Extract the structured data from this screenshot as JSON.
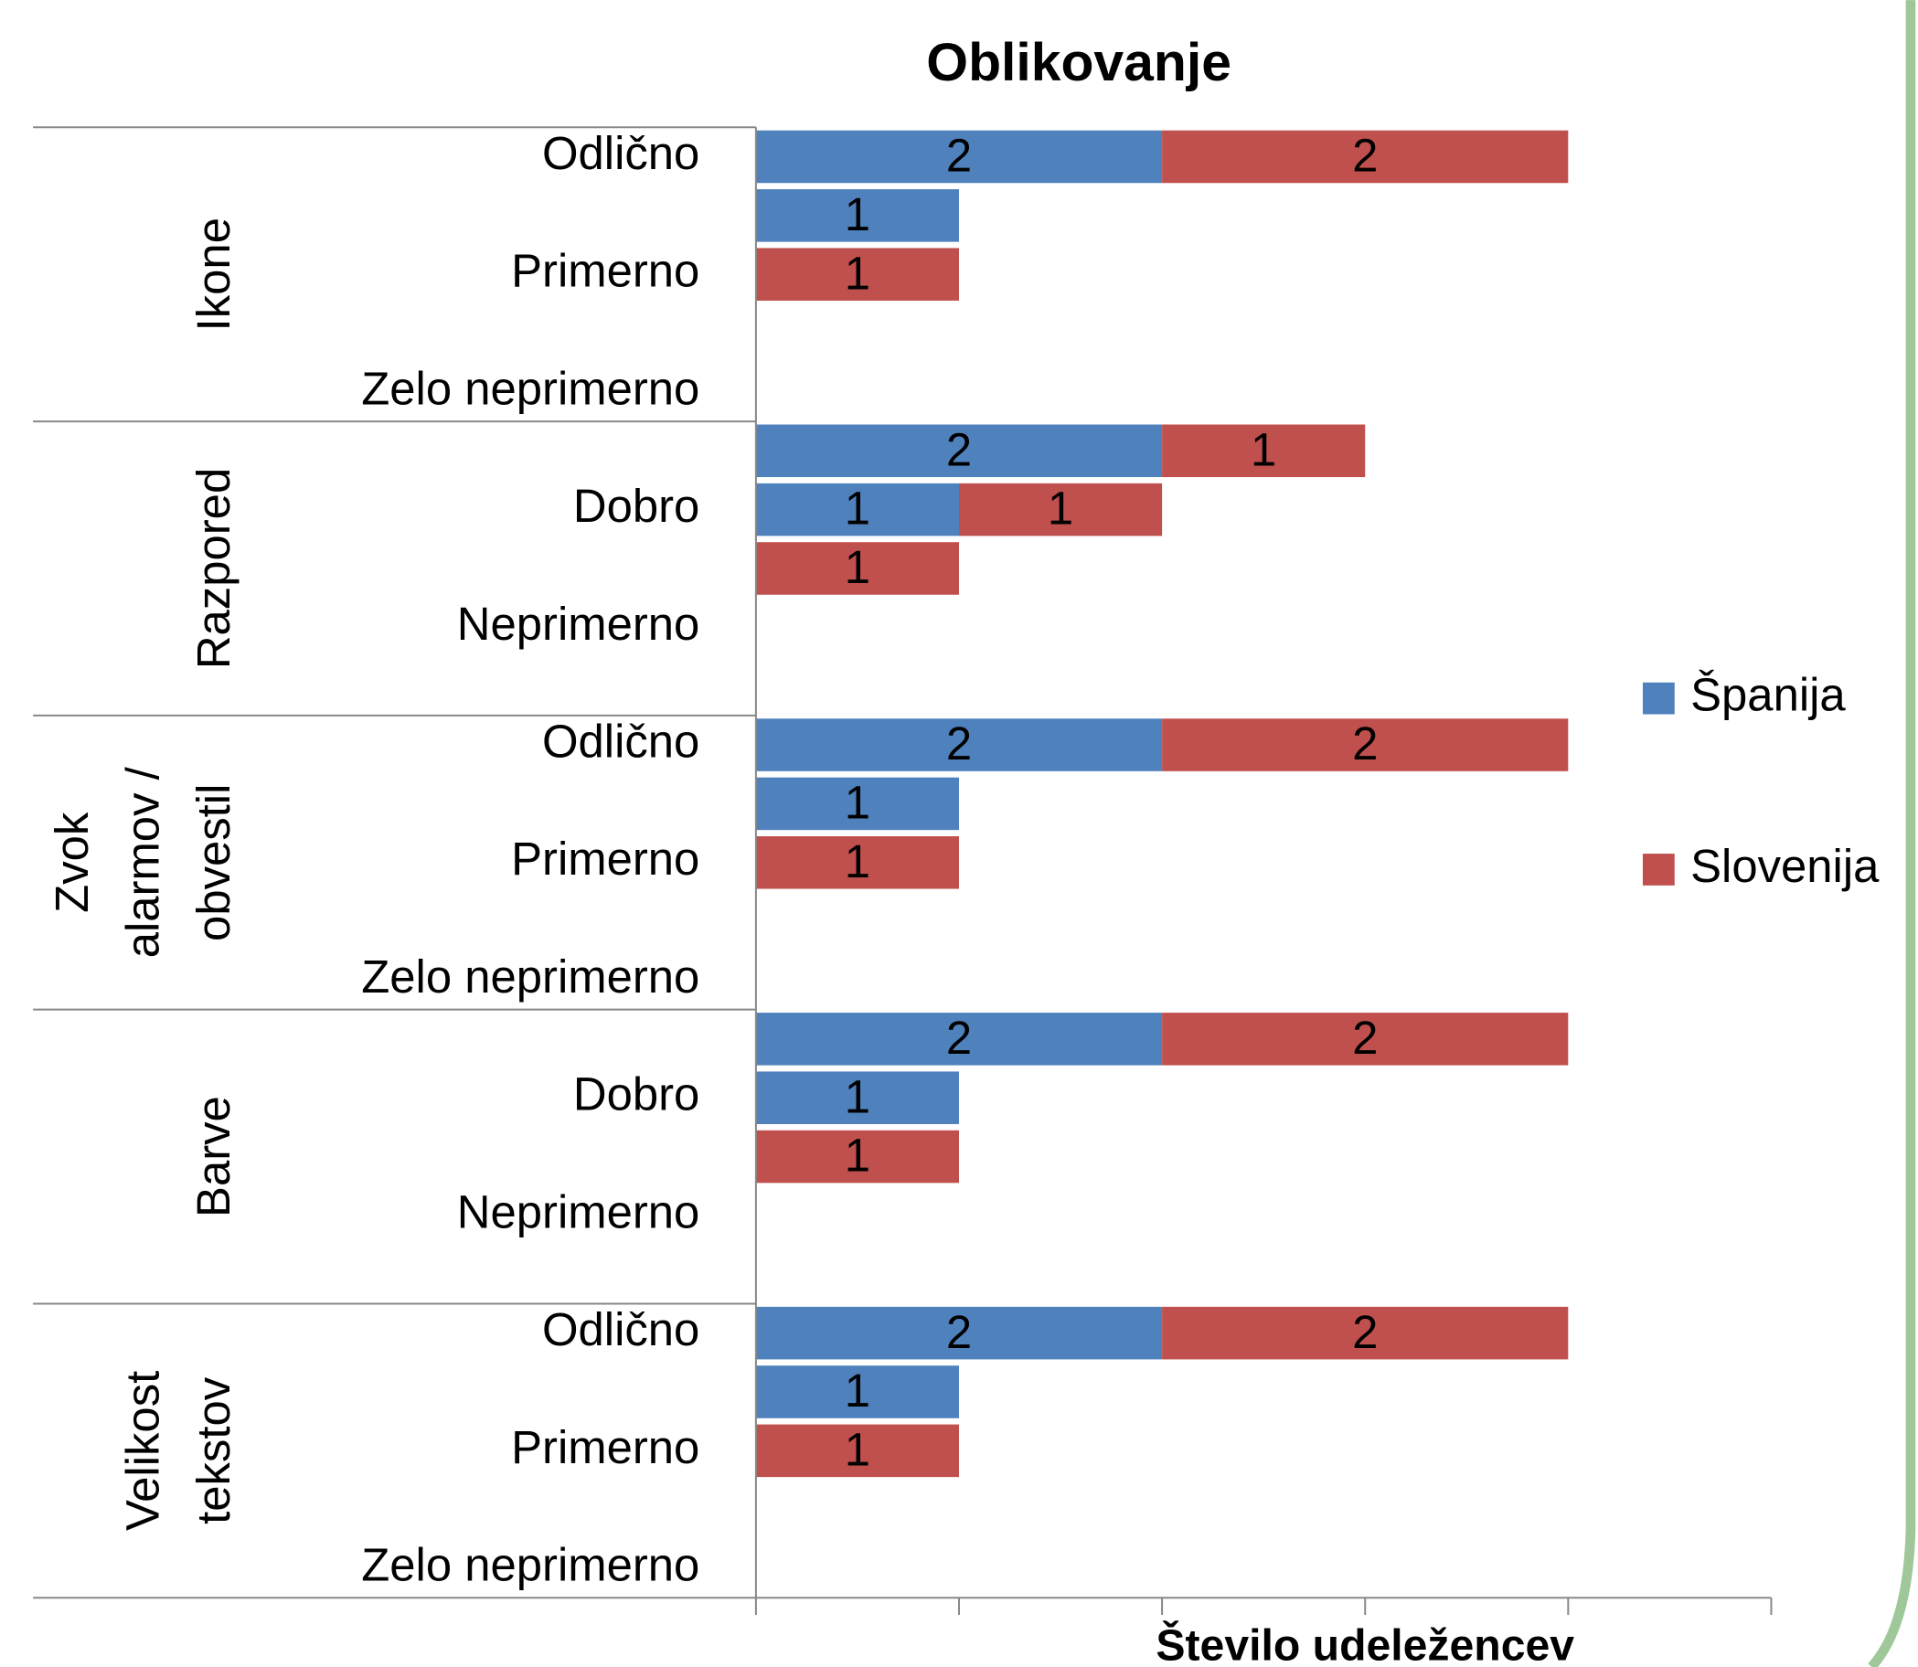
{
  "chart_data": {
    "type": "bar",
    "orientation": "horizontal",
    "stacked": true,
    "title": "Oblikovanje",
    "x_label": "Število udeležencev",
    "groups": [
      {
        "name": "Ikone",
        "categories": [
          "Odlično",
          null,
          "Primerno",
          null,
          "Zelo neprimerno"
        ]
      },
      {
        "name": "Razpored",
        "categories": [
          null,
          "Dobro",
          null,
          "Neprimerno",
          null
        ]
      },
      {
        "name": "Zvok alarmov / obvestil",
        "categories": [
          "Odlično",
          null,
          "Primerno",
          null,
          "Zelo neprimerno"
        ]
      },
      {
        "name": "Barve",
        "categories": [
          null,
          "Dobro",
          null,
          "Neprimerno",
          null
        ]
      },
      {
        "name": "Velikost tekstov",
        "categories": [
          "Odlično",
          null,
          "Primerno",
          null,
          "Zelo neprimerno"
        ]
      }
    ],
    "series": [
      {
        "name": "Španija",
        "color": "#4f81bd",
        "values": [
          2,
          1,
          null,
          null,
          null,
          2,
          1,
          null,
          null,
          null,
          2,
          1,
          null,
          null,
          null,
          2,
          1,
          null,
          null,
          null,
          2,
          1,
          null,
          null,
          null
        ]
      },
      {
        "name": "Slovenija",
        "color": "#c0504d",
        "values": [
          2,
          null,
          1,
          null,
          null,
          1,
          1,
          1,
          null,
          null,
          2,
          null,
          1,
          null,
          null,
          2,
          null,
          1,
          null,
          null,
          2,
          null,
          1,
          null,
          null
        ]
      }
    ],
    "xlim": [
      0,
      5
    ],
    "xticks": [
      0,
      1,
      2,
      3,
      4,
      5
    ],
    "legend": "right"
  }
}
